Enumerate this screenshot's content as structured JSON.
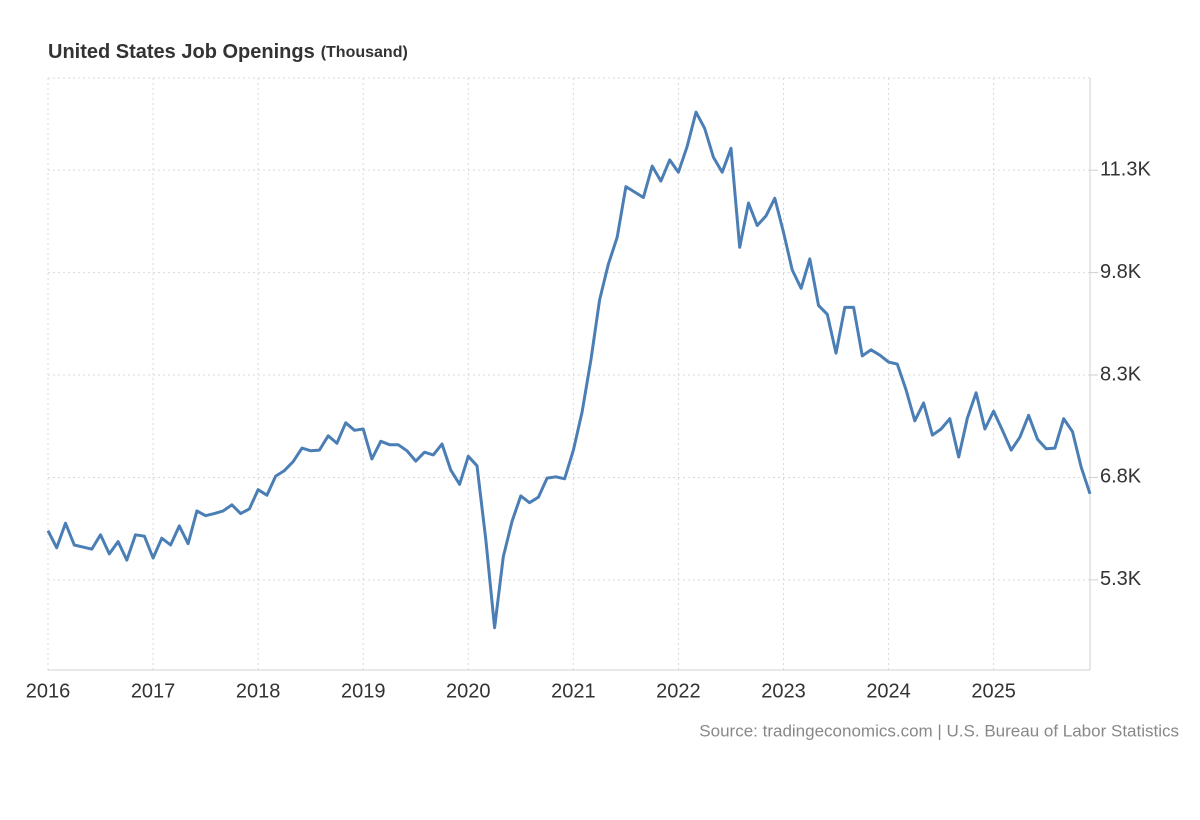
{
  "chart_data": {
    "type": "line",
    "title": "United States Job Openings",
    "unit": "(Thousand)",
    "source": "Source: tradingeconomics.com | U.S. Bureau of Labor Statistics",
    "color": "#4a7eb5",
    "grid": true,
    "xlim": [
      2016,
      2025.917
    ],
    "xticks": [
      2016,
      2017,
      2018,
      2019,
      2020,
      2021,
      2022,
      2023,
      2024,
      2025
    ],
    "ylim": [
      3980,
      12650
    ],
    "yticks": [
      {
        "value": 5300,
        "label": "5.3K"
      },
      {
        "value": 6800,
        "label": "6.8K"
      },
      {
        "value": 8300,
        "label": "8.3K"
      },
      {
        "value": 9800,
        "label": "9.8K"
      },
      {
        "value": 11300,
        "label": "11.3K"
      }
    ],
    "x": [
      2016,
      2016.083,
      2016.167,
      2016.25,
      2016.333,
      2016.417,
      2016.5,
      2016.583,
      2016.667,
      2016.75,
      2016.833,
      2016.917,
      2017,
      2017.083,
      2017.167,
      2017.25,
      2017.333,
      2017.417,
      2017.5,
      2017.583,
      2017.667,
      2017.75,
      2017.833,
      2017.917,
      2018,
      2018.083,
      2018.167,
      2018.25,
      2018.333,
      2018.417,
      2018.5,
      2018.583,
      2018.667,
      2018.75,
      2018.833,
      2018.917,
      2019,
      2019.083,
      2019.167,
      2019.25,
      2019.333,
      2019.417,
      2019.5,
      2019.583,
      2019.667,
      2019.75,
      2019.833,
      2019.917,
      2020,
      2020.083,
      2020.167,
      2020.25,
      2020.333,
      2020.417,
      2020.5,
      2020.583,
      2020.667,
      2020.75,
      2020.833,
      2020.917,
      2021,
      2021.083,
      2021.167,
      2021.25,
      2021.333,
      2021.417,
      2021.5,
      2021.583,
      2021.667,
      2021.75,
      2021.833,
      2021.917,
      2022,
      2022.083,
      2022.167,
      2022.25,
      2022.333,
      2022.417,
      2022.5,
      2022.583,
      2022.667,
      2022.75,
      2022.833,
      2022.917,
      2023,
      2023.083,
      2023.167,
      2023.25,
      2023.333,
      2023.417,
      2023.5,
      2023.583,
      2023.667,
      2023.75,
      2023.833,
      2023.917,
      2024,
      2024.083,
      2024.167,
      2024.25,
      2024.333,
      2024.417,
      2024.5,
      2024.583,
      2024.667,
      2024.75,
      2024.833,
      2024.917,
      2025,
      2025.083,
      2025.167,
      2025.25,
      2025.333,
      2025.417,
      2025.5,
      2025.583,
      2025.667,
      2025.75,
      2025.833,
      2025.917
    ],
    "values": [
      6020,
      5770,
      6130,
      5810,
      5780,
      5750,
      5960,
      5680,
      5860,
      5590,
      5960,
      5940,
      5620,
      5910,
      5810,
      6090,
      5830,
      6310,
      6240,
      6270,
      6310,
      6400,
      6270,
      6340,
      6620,
      6540,
      6820,
      6900,
      7030,
      7230,
      7190,
      7200,
      7410,
      7300,
      7600,
      7490,
      7510,
      7070,
      7330,
      7280,
      7280,
      7190,
      7040,
      7170,
      7130,
      7290,
      6910,
      6700,
      7110,
      6970,
      5890,
      4600,
      5640,
      6160,
      6530,
      6430,
      6510,
      6790,
      6810,
      6780,
      7200,
      7760,
      8520,
      9400,
      9920,
      10320,
      11060,
      10980,
      10900,
      11360,
      11140,
      11450,
      11270,
      11650,
      12150,
      11910,
      11490,
      11270,
      11620,
      10170,
      10820,
      10490,
      10630,
      10890,
      10390,
      9840,
      9570,
      10000,
      9320,
      9190,
      8620,
      9290,
      9290,
      8580,
      8670,
      8590,
      8490,
      8460,
      8080,
      7630,
      7890,
      7420,
      7510,
      7660,
      7100,
      7670,
      8040,
      7510,
      7770,
      7490,
      7200,
      7390,
      7710,
      7360,
      7220,
      7230,
      7660,
      7470,
      6950,
      6560
    ]
  }
}
